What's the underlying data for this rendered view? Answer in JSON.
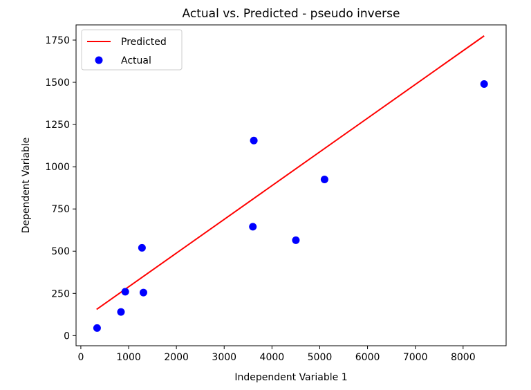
{
  "chart_data": {
    "type": "scatter",
    "title": "Actual vs. Predicted - pseudo inverse",
    "xlabel": "Independent Variable 1",
    "ylabel": "Dependent Variable",
    "xlim": [
      -100,
      8900
    ],
    "ylim": [
      -60,
      1840
    ],
    "xticks": [
      0,
      1000,
      2000,
      3000,
      4000,
      5000,
      6000,
      7000,
      8000
    ],
    "yticks": [
      0,
      250,
      500,
      750,
      1000,
      1250,
      1500,
      1750
    ],
    "grid": false,
    "legend": "top-left",
    "series": [
      {
        "name": "Predicted",
        "kind": "line",
        "color": "#ff0000",
        "points": [
          [
            330,
            155
          ],
          [
            8440,
            1775
          ]
        ]
      },
      {
        "name": "Actual",
        "kind": "scatter",
        "color": "#0000ff",
        "points": [
          [
            340,
            45
          ],
          [
            840,
            140
          ],
          [
            930,
            260
          ],
          [
            1280,
            520
          ],
          [
            1310,
            255
          ],
          [
            3600,
            645
          ],
          [
            3620,
            1155
          ],
          [
            4500,
            565
          ],
          [
            5100,
            925
          ],
          [
            8440,
            1490
          ]
        ]
      }
    ]
  }
}
